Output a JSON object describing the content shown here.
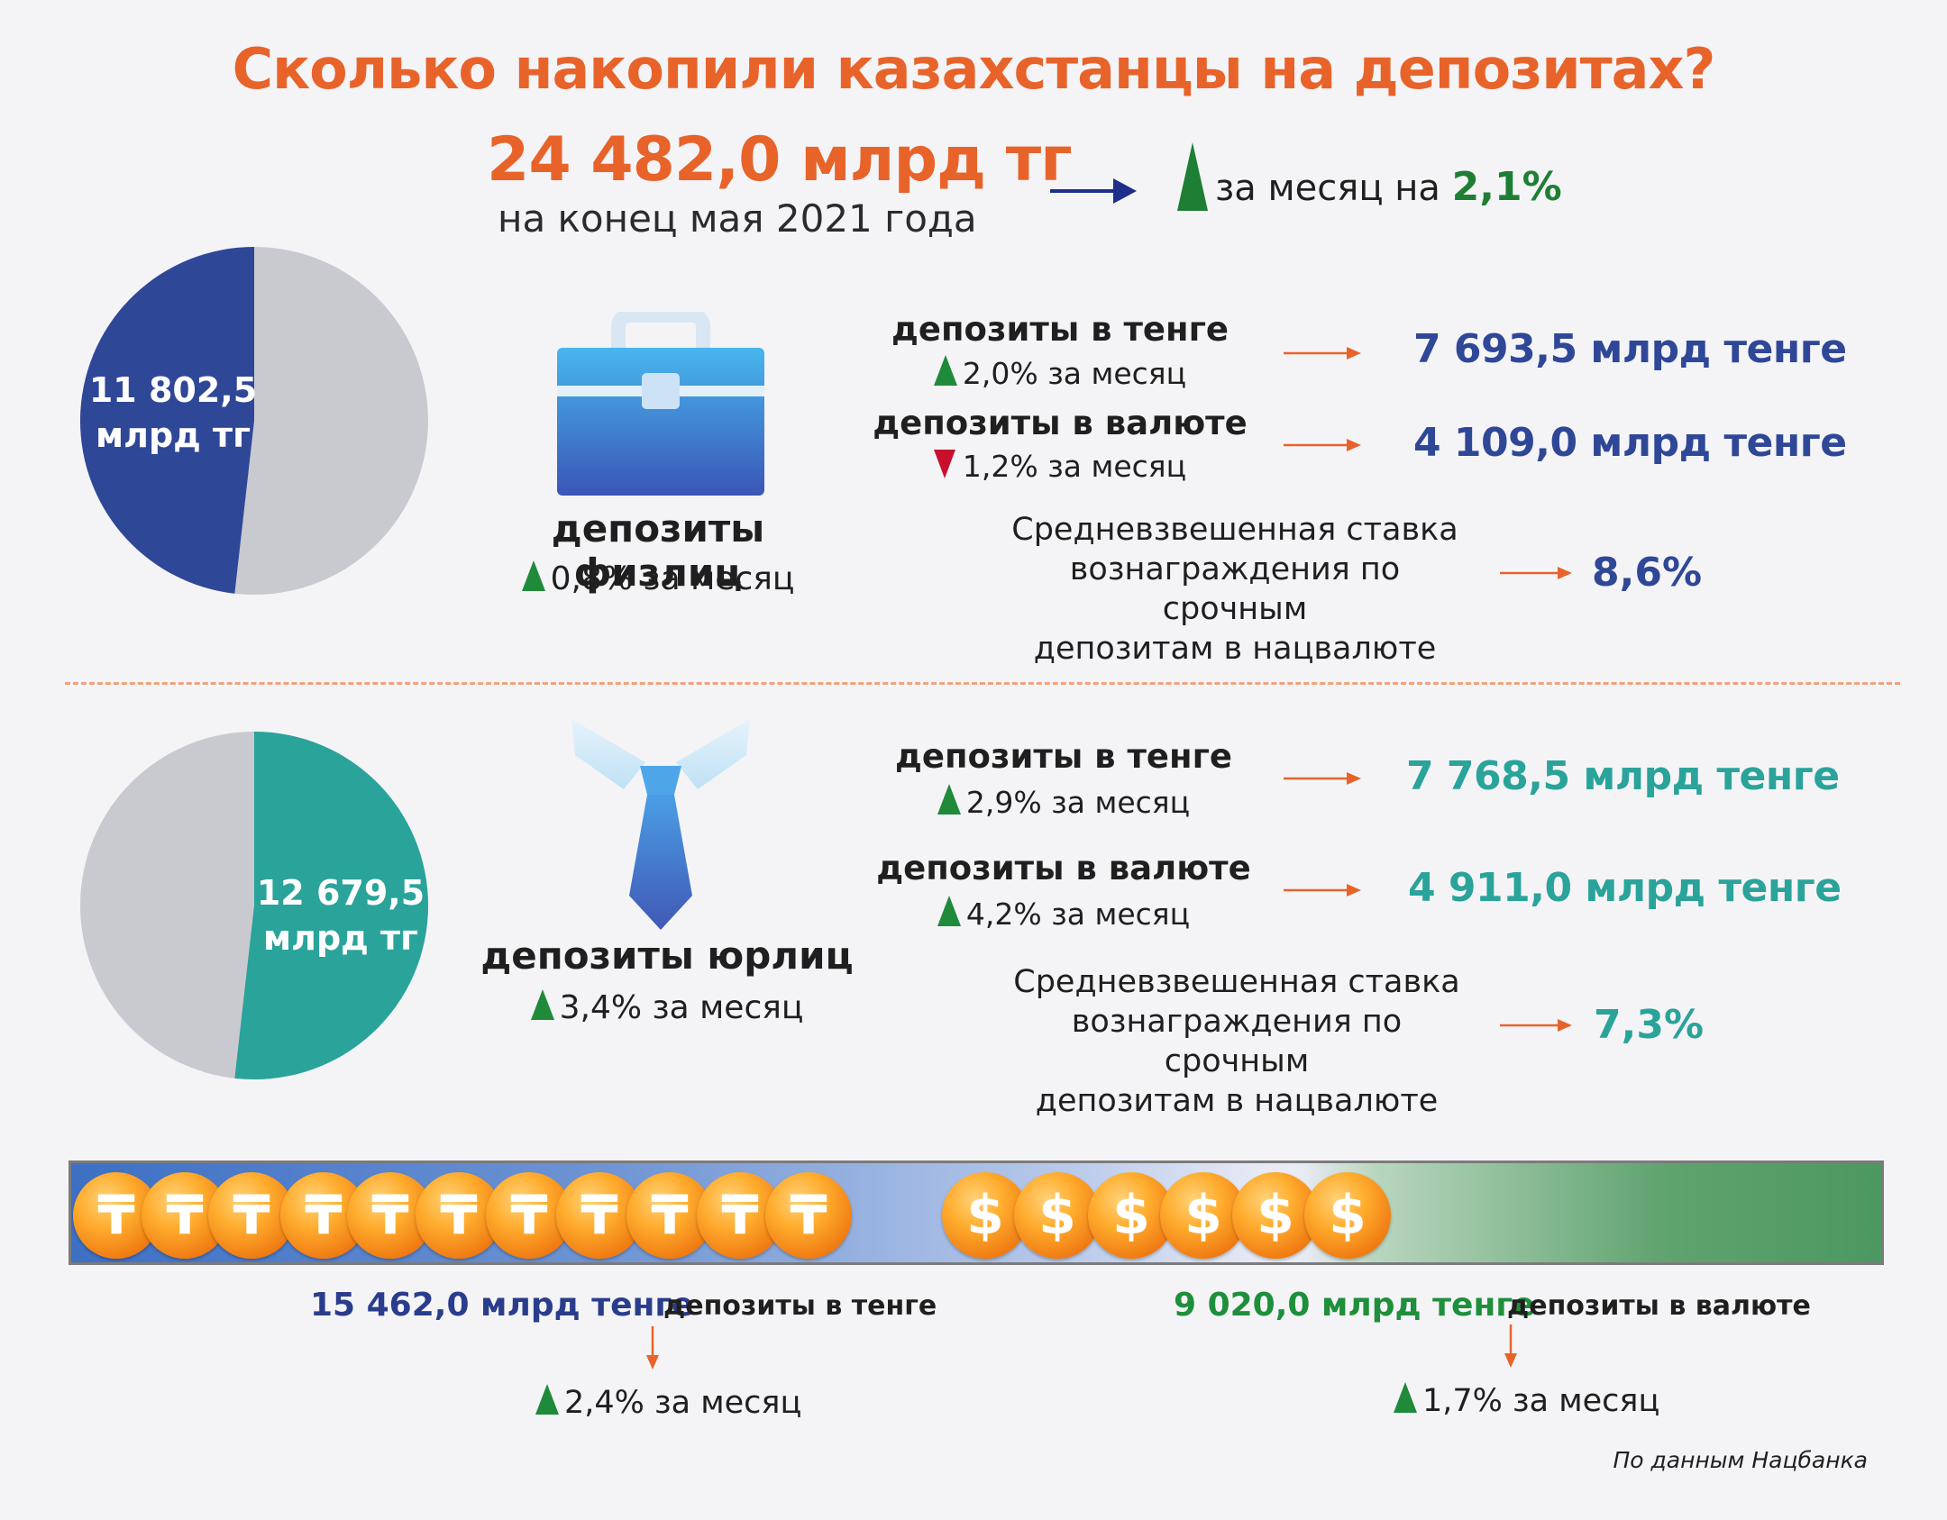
{
  "title": "Сколько накопили казахстанцы на депозитах?",
  "total": {
    "value": "24 482,0 млрд тг",
    "subtitle": "на конец мая 2021 года",
    "change_prefix": "за месяц на",
    "change_value": "2,1%"
  },
  "individuals": {
    "pie_value": "11 802,5",
    "pie_unit": "млрд тг",
    "label": "депозиты физлиц",
    "change": "0,8% за месяц",
    "tenge": {
      "label": "депозиты в тенге",
      "change": "2,0% за месяц",
      "direction": "up",
      "value": "7 693,5 млрд тенге"
    },
    "fx": {
      "label": "депозиты в валюте",
      "change": "1,2% за месяц",
      "direction": "down",
      "value": "4 109,0 млрд тенге"
    },
    "rate_lines": [
      "Средневзвешенная ставка",
      "вознаграждения по срочным",
      "депозитам в нацвалюте"
    ],
    "rate_value": "8,6%"
  },
  "legal": {
    "pie_value": "12 679,5",
    "pie_unit": "млрд тг",
    "label": "депозиты юрлиц",
    "change": "3,4% за месяц",
    "tenge": {
      "label": "депозиты в тенге",
      "change": "2,9% за месяц",
      "direction": "up",
      "value": "7 768,5 млрд тенге"
    },
    "fx": {
      "label": "депозиты в валюте",
      "change": "4,2% за месяц",
      "direction": "up",
      "value": "4 911,0 млрд тенге"
    },
    "rate_lines": [
      "Средневзвешенная ставка",
      "вознаграждения по срочным",
      "депозитам в нацвалюте"
    ],
    "rate_value": "7,3%"
  },
  "currency_split": {
    "tenge": {
      "value": "15 462,0 млрд тенге",
      "label": "депозиты в тенге",
      "change": "2,4% за месяц"
    },
    "fx": {
      "value": "9 020,0 млрд тенге",
      "label": "депозиты в валюте",
      "change": "1,7% за месяц"
    },
    "tenge_symbol": "₸",
    "dollar_symbol": "$"
  },
  "source": "По данным Нацбанка",
  "colors": {
    "orange": "#e8632a",
    "blue": "#2f4797",
    "teal": "#2aa39a",
    "green": "#1e7f34",
    "gray": "#c9cacf"
  },
  "chart_data": [
    {
      "type": "pie",
      "slices": [
        {
          "value": 11802.5
        },
        {
          "value": 12679.5
        }
      ],
      "highlight_index": 0
    },
    {
      "type": "pie",
      "slices": [
        {
          "value": 12679.5
        },
        {
          "value": 11802.5
        }
      ],
      "highlight_index": 0
    }
  ]
}
